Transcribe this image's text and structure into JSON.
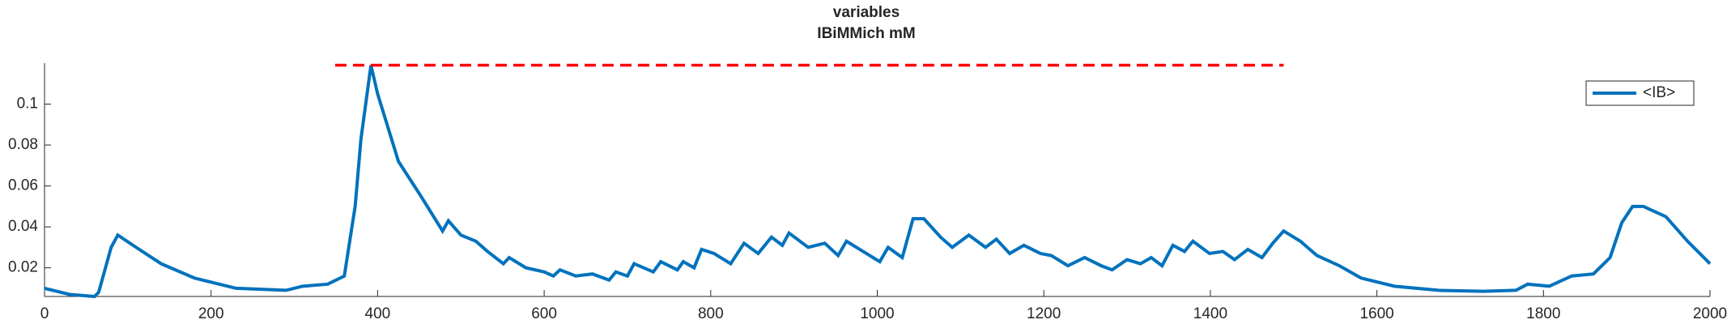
{
  "chart_data": {
    "type": "line",
    "title": "variables",
    "subtitle": "IBiMMich mM",
    "xlim": [
      0,
      2000
    ],
    "xticks": [
      0,
      200,
      400,
      600,
      800,
      1000,
      1200,
      1400,
      1600,
      1800,
      2000
    ],
    "ylim": [
      0.006,
      0.12
    ],
    "yticks": [
      0.02,
      0.04,
      0.06,
      0.08,
      0.1
    ],
    "legend": "upper right",
    "series": [
      {
        "name": "<IB>",
        "color": "#0072bd",
        "x": [
          0,
          30,
          60,
          65,
          80,
          88,
          110,
          140,
          180,
          230,
          290,
          310,
          340,
          360,
          373,
          380,
          392,
          400,
          425,
          452,
          478,
          485,
          500,
          518,
          532,
          551,
          558,
          578,
          600,
          611,
          619,
          638,
          658,
          678,
          686,
          700,
          708,
          731,
          740,
          760,
          767,
          780,
          789,
          804,
          824,
          840,
          857,
          873,
          886,
          894,
          917,
          937,
          953,
          963,
          983,
          1003,
          1013,
          1030,
          1043,
          1056,
          1076,
          1090,
          1110,
          1130,
          1143,
          1159,
          1176,
          1196,
          1209,
          1229,
          1249,
          1269,
          1282,
          1300,
          1316,
          1329,
          1342,
          1355,
          1369,
          1379,
          1399,
          1415,
          1429,
          1445,
          1462,
          1475,
          1488,
          1508,
          1528,
          1555,
          1581,
          1621,
          1674,
          1728,
          1767,
          1781,
          1807,
          1834,
          1860,
          1880,
          1894,
          1907,
          1920,
          1947,
          1973,
          2000
        ],
        "values": [
          0.01,
          0.007,
          0.006,
          0.008,
          0.03,
          0.036,
          0.03,
          0.022,
          0.015,
          0.01,
          0.009,
          0.011,
          0.012,
          0.016,
          0.05,
          0.083,
          0.119,
          0.105,
          0.072,
          0.055,
          0.038,
          0.043,
          0.036,
          0.033,
          0.028,
          0.022,
          0.025,
          0.02,
          0.018,
          0.016,
          0.019,
          0.016,
          0.017,
          0.014,
          0.018,
          0.016,
          0.022,
          0.018,
          0.023,
          0.019,
          0.023,
          0.02,
          0.029,
          0.027,
          0.022,
          0.032,
          0.027,
          0.035,
          0.031,
          0.037,
          0.03,
          0.032,
          0.026,
          0.033,
          0.028,
          0.023,
          0.03,
          0.025,
          0.044,
          0.044,
          0.035,
          0.03,
          0.036,
          0.03,
          0.034,
          0.027,
          0.031,
          0.027,
          0.026,
          0.021,
          0.025,
          0.021,
          0.019,
          0.024,
          0.022,
          0.025,
          0.021,
          0.031,
          0.028,
          0.033,
          0.027,
          0.028,
          0.024,
          0.029,
          0.025,
          0.032,
          0.038,
          0.033,
          0.026,
          0.021,
          0.015,
          0.011,
          0.009,
          0.0085,
          0.009,
          0.012,
          0.011,
          0.016,
          0.017,
          0.025,
          0.042,
          0.05,
          0.05,
          0.045,
          0.033,
          0.022
        ]
      },
      {
        "color": "#ff0000",
        "dashed": true,
        "x": [
          349,
          1488
        ],
        "values": [
          0.119,
          0.119
        ]
      }
    ]
  }
}
